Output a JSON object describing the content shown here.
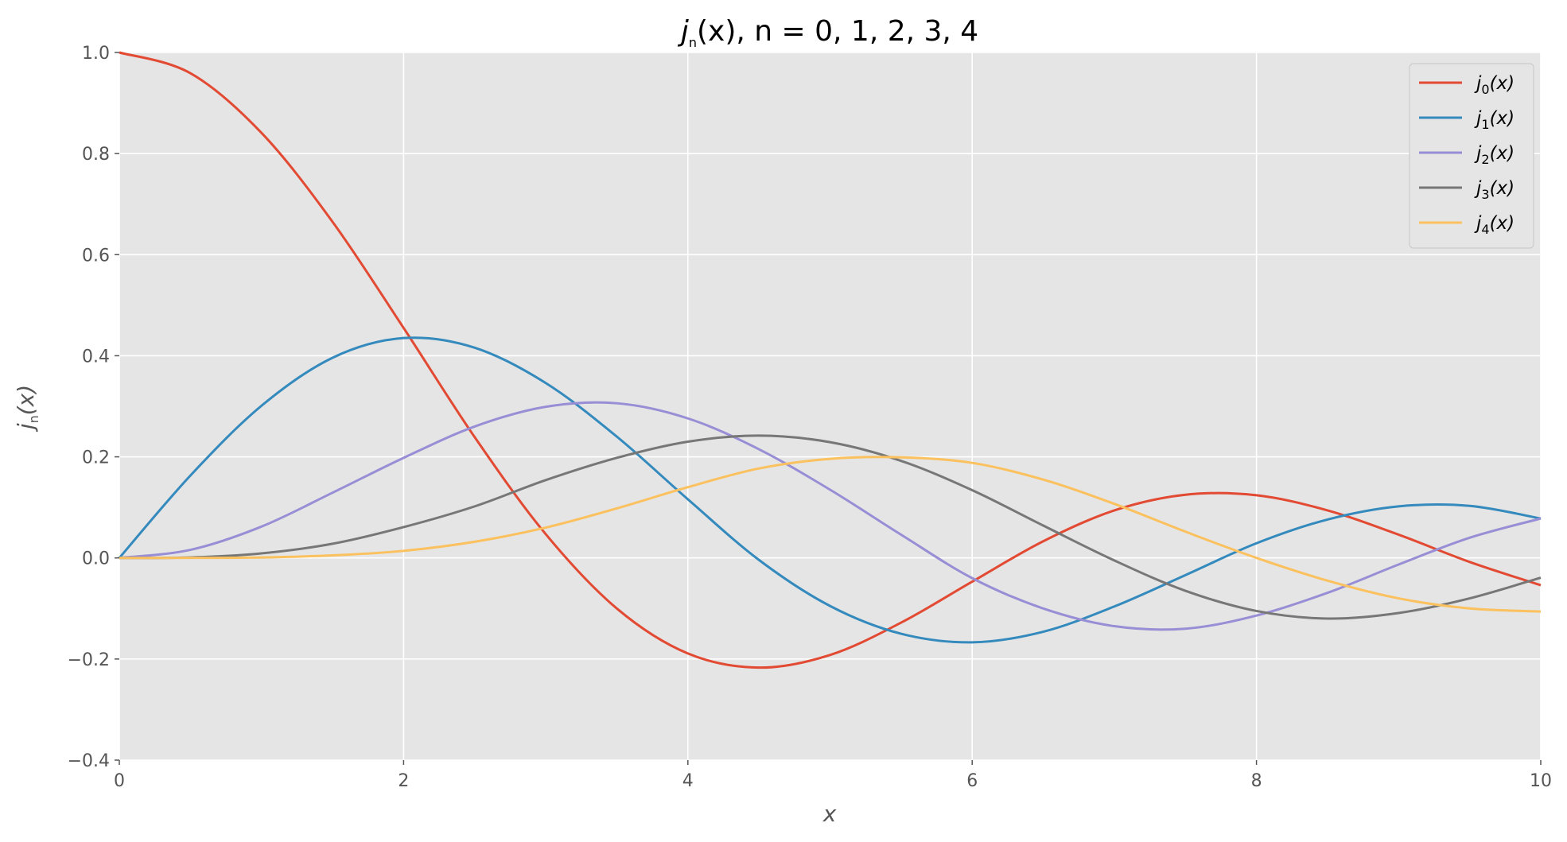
{
  "chart_data": {
    "type": "line",
    "title": "j_n(x), n = 0, 1, 2, 3, 4",
    "title_parts": [
      "j",
      "n",
      "(x), n = 0, 1, 2, 3, 4"
    ],
    "xlabel": "x",
    "ylabel_parts": [
      "j",
      "n",
      "(x)"
    ],
    "xlim": [
      0,
      10
    ],
    "ylim": [
      -0.4,
      1.0
    ],
    "x_ticks": [
      0,
      2,
      4,
      6,
      8,
      10
    ],
    "y_ticks": [
      -0.4,
      -0.2,
      0.0,
      0.2,
      0.4,
      0.6,
      0.8,
      1.0
    ],
    "x_tick_labels": [
      "0",
      "2",
      "4",
      "6",
      "8",
      "10"
    ],
    "y_tick_labels": [
      "−0.4",
      "−0.2",
      "0.0",
      "0.2",
      "0.4",
      "0.6",
      "0.8",
      "1.0"
    ],
    "grid": true,
    "legend_position": "top-right",
    "x": [
      0,
      0.5,
      1,
      1.5,
      2,
      2.5,
      3,
      3.5,
      4,
      4.5,
      5,
      5.5,
      6,
      6.5,
      7,
      7.5,
      8,
      8.5,
      9,
      9.5,
      10
    ],
    "series": [
      {
        "name": "j_0(x)",
        "label_parts": [
          "j",
          "0",
          "(x)"
        ],
        "color": "#E24A33",
        "values": [
          1.0,
          0.959,
          0.841,
          0.665,
          0.455,
          0.239,
          0.047,
          -0.1,
          -0.189,
          -0.217,
          -0.192,
          -0.128,
          -0.047,
          0.033,
          0.094,
          0.125,
          0.124,
          0.094,
          0.046,
          -0.008,
          -0.054
        ]
      },
      {
        "name": "j_1(x)",
        "label_parts": [
          "j",
          "1",
          "(x)"
        ],
        "color": "#348ABD",
        "values": [
          0.0,
          0.163,
          0.301,
          0.396,
          0.435,
          0.416,
          0.346,
          0.24,
          0.116,
          -0.004,
          -0.095,
          -0.15,
          -0.167,
          -0.146,
          -0.096,
          -0.034,
          0.029,
          0.076,
          0.102,
          0.103,
          0.078
        ]
      },
      {
        "name": "j_2(x)",
        "label_parts": [
          "j",
          "2",
          "(x)"
        ],
        "color": "#988ED5",
        "values": [
          0.0,
          0.016,
          0.062,
          0.129,
          0.198,
          0.26,
          0.299,
          0.306,
          0.276,
          0.215,
          0.135,
          0.046,
          -0.04,
          -0.1,
          -0.135,
          -0.14,
          -0.114,
          -0.069,
          -0.013,
          0.04,
          0.078
        ]
      },
      {
        "name": "j_3(x)",
        "label_parts": [
          "j",
          "3",
          "(x)"
        ],
        "color": "#777777",
        "values": [
          0.0,
          0.001,
          0.009,
          0.028,
          0.061,
          0.102,
          0.154,
          0.198,
          0.23,
          0.242,
          0.229,
          0.192,
          0.134,
          0.064,
          -0.005,
          -0.065,
          -0.105,
          -0.12,
          -0.109,
          -0.08,
          -0.039
        ]
      },
      {
        "name": "j_4(x)",
        "label_parts": [
          "j",
          "4",
          "(x)"
        ],
        "color": "#FBC15E",
        "values": [
          0.0,
          0.0001,
          0.001,
          0.005,
          0.014,
          0.032,
          0.06,
          0.098,
          0.14,
          0.177,
          0.196,
          0.199,
          0.188,
          0.155,
          0.107,
          0.052,
          0.0,
          -0.045,
          -0.08,
          -0.1,
          -0.106
        ]
      }
    ]
  },
  "colors": {
    "plot_background": "#E5E5E5",
    "grid": "#FFFFFF",
    "tick_text": "#555555"
  }
}
